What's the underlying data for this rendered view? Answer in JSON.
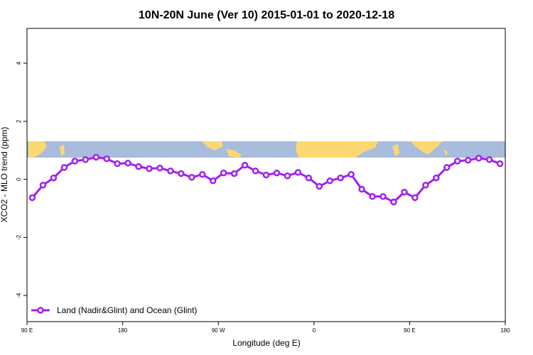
{
  "chart_data": {
    "type": "line",
    "title": "10N-20N June (Ver 10)   2015-01-01 to 2020-12-18",
    "xlabel": "Longitude (deg E)",
    "ylabel": "XCO2 - MLO trend (ppm)",
    "x": [
      95,
      105,
      115,
      125,
      135,
      145,
      155,
      165,
      175,
      185,
      195,
      205,
      215,
      225,
      235,
      245,
      255,
      265,
      275,
      285,
      295,
      305,
      315,
      325,
      335,
      345,
      355,
      365,
      375,
      385,
      395,
      405,
      415,
      425,
      435,
      445,
      455,
      465,
      475,
      485,
      495,
      505,
      515,
      525,
      535
    ],
    "series": [
      {
        "name": "Land (Nadir&Glint) and Ocean (Glint)",
        "color": "#a020f0",
        "values": [
          -0.63,
          -0.2,
          0.05,
          0.41,
          0.63,
          0.68,
          0.76,
          0.71,
          0.54,
          0.56,
          0.44,
          0.37,
          0.39,
          0.29,
          0.2,
          0.07,
          0.17,
          -0.05,
          0.22,
          0.2,
          0.49,
          0.29,
          0.15,
          0.22,
          0.12,
          0.24,
          0.05,
          -0.24,
          -0.05,
          0.05,
          0.17,
          -0.34,
          -0.59,
          -0.59,
          -0.78,
          -0.44,
          -0.63,
          -0.2,
          0.05,
          0.41,
          0.63,
          0.66,
          0.73,
          0.68,
          0.54
        ]
      }
    ],
    "xlim": [
      90,
      540
    ],
    "xticks": [
      {
        "value": 90,
        "label": "90 E"
      },
      {
        "value": 180,
        "label": "180"
      },
      {
        "value": 270,
        "label": "90 W"
      },
      {
        "value": 360,
        "label": "0"
      },
      {
        "value": 450,
        "label": "90 E"
      },
      {
        "value": 540,
        "label": "180"
      }
    ],
    "ylim": [
      -4.9,
      5.2
    ],
    "yticks": [
      -4,
      -2,
      0,
      2,
      4
    ],
    "legend": "bottom-left"
  }
}
